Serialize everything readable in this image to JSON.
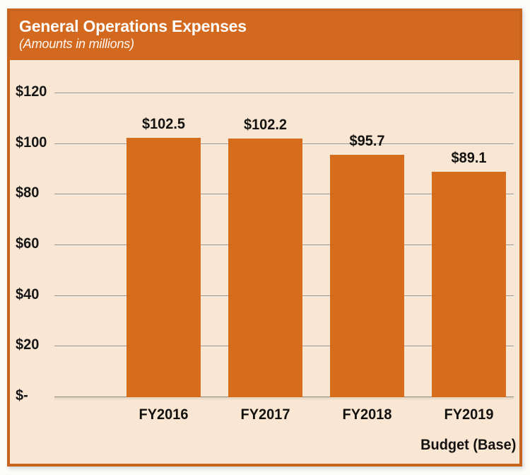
{
  "chart_data": {
    "type": "bar",
    "title": "General Operations Expenses",
    "subtitle": "(Amounts in millions)",
    "categories": [
      "FY2016",
      "FY2017",
      "FY2018",
      "FY2019"
    ],
    "values": [
      102.5,
      102.2,
      95.7,
      89.1
    ],
    "value_labels": [
      "$102.5",
      "$102.2",
      "$95.7",
      "$89.1"
    ],
    "x_axis_note": "Budget (Base)",
    "xlabel": "",
    "ylabel": "",
    "ylim": [
      0,
      120
    ],
    "grid": true,
    "legend": "none",
    "y_ticks": [
      {
        "label": "$-",
        "value": 0
      },
      {
        "label": "$20",
        "value": 20
      },
      {
        "label": "$40",
        "value": 40
      },
      {
        "label": "$60",
        "value": 60
      },
      {
        "label": "$80",
        "value": 80
      },
      {
        "label": "$100",
        "value": 100
      },
      {
        "label": "$120",
        "value": 120
      }
    ]
  },
  "colors": {
    "header_bg": "#d2691e",
    "header_text": "#ffffff",
    "border": "#c7651f",
    "chart_bg": "#f9e7d4",
    "bar": "#d66d1d",
    "gridline": "#95908a",
    "label_text": "#141210"
  }
}
